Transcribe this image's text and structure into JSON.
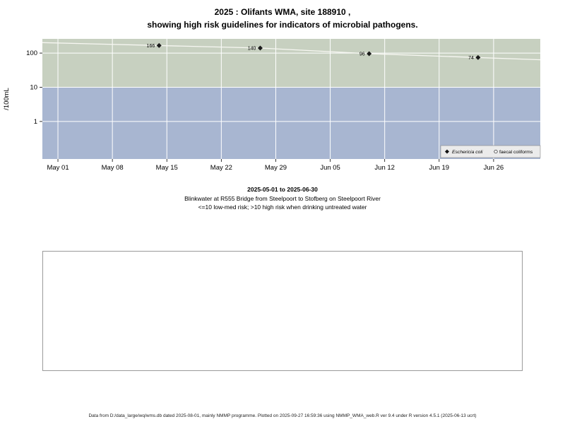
{
  "title": {
    "line1": "2025 : Olifants WMA, site 188910 ,",
    "line2": "showing high risk guidelines for indicators of microbial pathogens."
  },
  "chart_data": {
    "type": "scatter",
    "title": "2025 : Olifants WMA, site 188910 , showing high risk guidelines for indicators of microbial pathogens.",
    "ylabel": "/100mL",
    "y_scale": "log10",
    "ylim": [
      0.08,
      260
    ],
    "y_ticks": [
      1,
      10,
      100
    ],
    "x_range_days": [
      -2,
      62
    ],
    "x_ticks": [
      {
        "label": "May 01",
        "day": 0
      },
      {
        "label": "May 08",
        "day": 7
      },
      {
        "label": "May 15",
        "day": 14
      },
      {
        "label": "May 22",
        "day": 21
      },
      {
        "label": "May 29",
        "day": 28
      },
      {
        "label": "Jun 05",
        "day": 35
      },
      {
        "label": "Jun 12",
        "day": 42
      },
      {
        "label": "Jun 19",
        "day": 49
      },
      {
        "label": "Jun 26",
        "day": 56
      }
    ],
    "bands": [
      {
        "name": "high-risk-band",
        "from": 10,
        "to": 260,
        "color": "#c7d0c0"
      },
      {
        "name": "low-med-risk-band",
        "from": 0.08,
        "to": 10,
        "color": "#a8b6d1"
      }
    ],
    "grid_on": true,
    "grid_color": "#ffffff",
    "trend_line_color": "#f7f7f2",
    "legend_position": "bottom-right",
    "series": [
      {
        "name": "Eschericia coli",
        "marker": "filled-diamond",
        "color": "#1a1a1a",
        "points": [
          {
            "day": 13,
            "date": "May 14",
            "value": 166
          },
          {
            "day": 26,
            "date": "May 27",
            "value": 140
          },
          {
            "day": 40,
            "date": "Jun 10",
            "value": 96
          },
          {
            "day": 54,
            "date": "Jun 24",
            "value": 74
          }
        ]
      },
      {
        "name": "faecal coliforms",
        "marker": "open-circle",
        "color": "#1a1a1a",
        "points": []
      }
    ]
  },
  "caption": {
    "line1": "2025-05-01 to 2025-06-30",
    "line2": "Blinkwater at R555 Bridge from Steelpoort to Stofberg on Steelpoort River",
    "line3": "<=10 low-med risk; >10 high risk when drinking untreated water"
  },
  "footer": "Data from D:/data_large/wq/wms.db dated 2025-08-01, mainly NMMP programme. Plotted on 2025-09-27 16:59:36 using NMMP_WMA_web.R ver 9.4 under R version 4.5.1 (2025-06-13 ucrt)"
}
